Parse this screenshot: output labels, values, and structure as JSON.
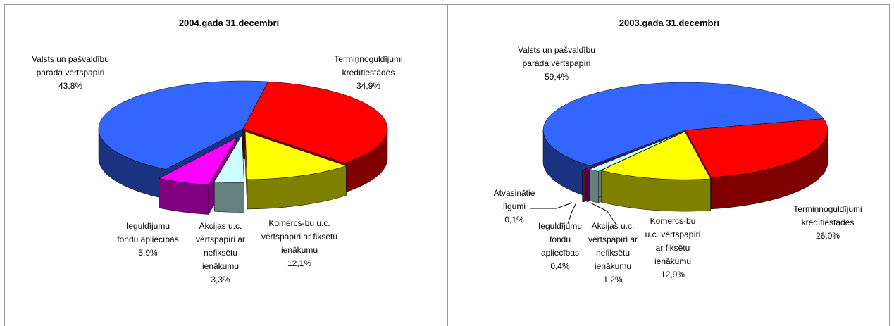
{
  "chart_data": [
    {
      "type": "pie",
      "title": "2004.gada 31.decembrī",
      "categories": [
        "Termiņnoguldījumi kredītiestādēs",
        "Komercs-bu u.c. vērtspapīri ar fiksētu ienākumu",
        "Akcijas u.c. vērtspapīri ar nefiksētu ienākumu",
        "Ieguldījumu fondu apliecības",
        "Valsts un pašvaldību parāda vērtspapīri"
      ],
      "values": [
        34.9,
        12.1,
        3.3,
        5.9,
        43.8
      ],
      "value_labels": [
        "34,9%",
        "12,1%",
        "3,3%",
        "5,9%",
        "43,8%"
      ],
      "colors": [
        "#ff0000",
        "#ffff00",
        "#ccffff",
        "#ff00ff",
        "#3366ff"
      ]
    },
    {
      "type": "pie",
      "title": "2003.gada 31.decembrī",
      "categories": [
        "Termiņnoguldījumi kredītiestādēs",
        "Komercs-bu u.c. vērtspapīri ar fiksētu ienākumu",
        "Akcijas u.c. vērtspapīri ar nefiksētu ienākumu",
        "Ieguldījumu fondu apliecības",
        "Atvasinātie līgumi",
        "Valsts un pašvaldību parāda vērtspapīri"
      ],
      "values": [
        26.0,
        12.9,
        1.2,
        0.4,
        0.1,
        59.4
      ],
      "value_labels": [
        "26,0%",
        "12,9%",
        "1,2%",
        "0,4%",
        "0,1%",
        "59,4%"
      ],
      "colors": [
        "#ff0000",
        "#ffff00",
        "#ccffff",
        "#990099",
        "#993333",
        "#3366ff"
      ]
    }
  ]
}
